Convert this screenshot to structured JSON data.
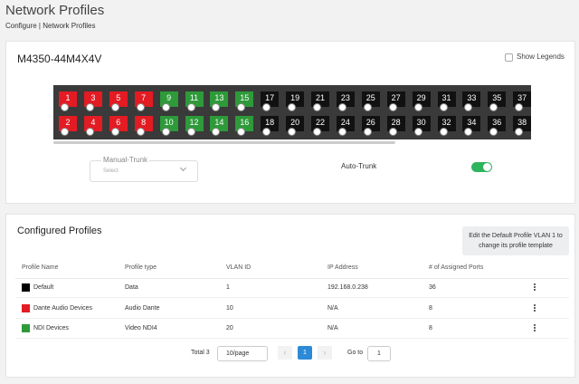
{
  "header": {
    "title": "Network Profiles",
    "breadcrumb": "Configure | Network Profiles"
  },
  "switch": {
    "model": "M4350-44M4X4V",
    "show_legends": "Show Legends",
    "ports_top": [
      {
        "label": 1,
        "color": "#e31b23"
      },
      {
        "label": 3,
        "color": "#e31b23"
      },
      {
        "label": 5,
        "color": "#e31b23"
      },
      {
        "label": 7,
        "color": "#e31b23"
      },
      {
        "label": 9,
        "color": "#2e9a3a"
      },
      {
        "label": 11,
        "color": "#2e9a3a"
      },
      {
        "label": 13,
        "color": "#2e9a3a"
      },
      {
        "label": 15,
        "color": "#2e9a3a"
      },
      {
        "label": 17,
        "color": "#111111"
      },
      {
        "label": 19,
        "color": "#111111"
      },
      {
        "label": 21,
        "color": "#111111"
      },
      {
        "label": 23,
        "color": "#111111"
      },
      {
        "label": 25,
        "color": "#111111"
      },
      {
        "label": 27,
        "color": "#111111"
      },
      {
        "label": 29,
        "color": "#111111"
      },
      {
        "label": 31,
        "color": "#111111"
      },
      {
        "label": 33,
        "color": "#111111"
      },
      {
        "label": 35,
        "color": "#111111"
      },
      {
        "label": 37,
        "color": "#111111"
      }
    ],
    "ports_bottom": [
      {
        "label": 2,
        "color": "#e31b23"
      },
      {
        "label": 4,
        "color": "#e31b23"
      },
      {
        "label": 6,
        "color": "#e31b23"
      },
      {
        "label": 8,
        "color": "#e31b23"
      },
      {
        "label": 10,
        "color": "#2e9a3a"
      },
      {
        "label": 12,
        "color": "#2e9a3a"
      },
      {
        "label": 14,
        "color": "#2e9a3a"
      },
      {
        "label": 16,
        "color": "#2e9a3a"
      },
      {
        "label": 18,
        "color": "#111111"
      },
      {
        "label": 20,
        "color": "#111111"
      },
      {
        "label": 22,
        "color": "#111111"
      },
      {
        "label": 24,
        "color": "#111111"
      },
      {
        "label": 26,
        "color": "#111111"
      },
      {
        "label": 28,
        "color": "#111111"
      },
      {
        "label": 30,
        "color": "#111111"
      },
      {
        "label": 32,
        "color": "#111111"
      },
      {
        "label": 34,
        "color": "#111111"
      },
      {
        "label": 36,
        "color": "#111111"
      },
      {
        "label": 38,
        "color": "#111111"
      }
    ]
  },
  "trunk": {
    "manual_label": "Manual-Trunk",
    "manual_placeholder": "Select",
    "auto_label": "Auto-Trunk",
    "auto_enabled": true
  },
  "profiles": {
    "title": "Configured Profiles",
    "tooltip": "Edit the Default Profile VLAN 1 to change its profile template",
    "columns": [
      "Profile Name",
      "Profile type",
      "VLAN ID",
      "IP Address",
      "# of Assigned Ports"
    ],
    "rows": [
      {
        "color": "#000000",
        "cells": [
          "Default",
          "Data",
          1,
          "192.168.0.238",
          36
        ]
      },
      {
        "color": "#e31b23",
        "cells": [
          "Dante Audio Devices",
          "Audio Dante",
          10,
          "N/A",
          8
        ]
      },
      {
        "color": "#2e9a3a",
        "cells": [
          "NDI Devices",
          "Video NDI4",
          20,
          "N/A",
          8
        ]
      }
    ]
  },
  "pagination": {
    "total": "Total 3",
    "page_size": "10/page",
    "current": 1,
    "goto_label": "Go to",
    "goto_value": 1
  }
}
